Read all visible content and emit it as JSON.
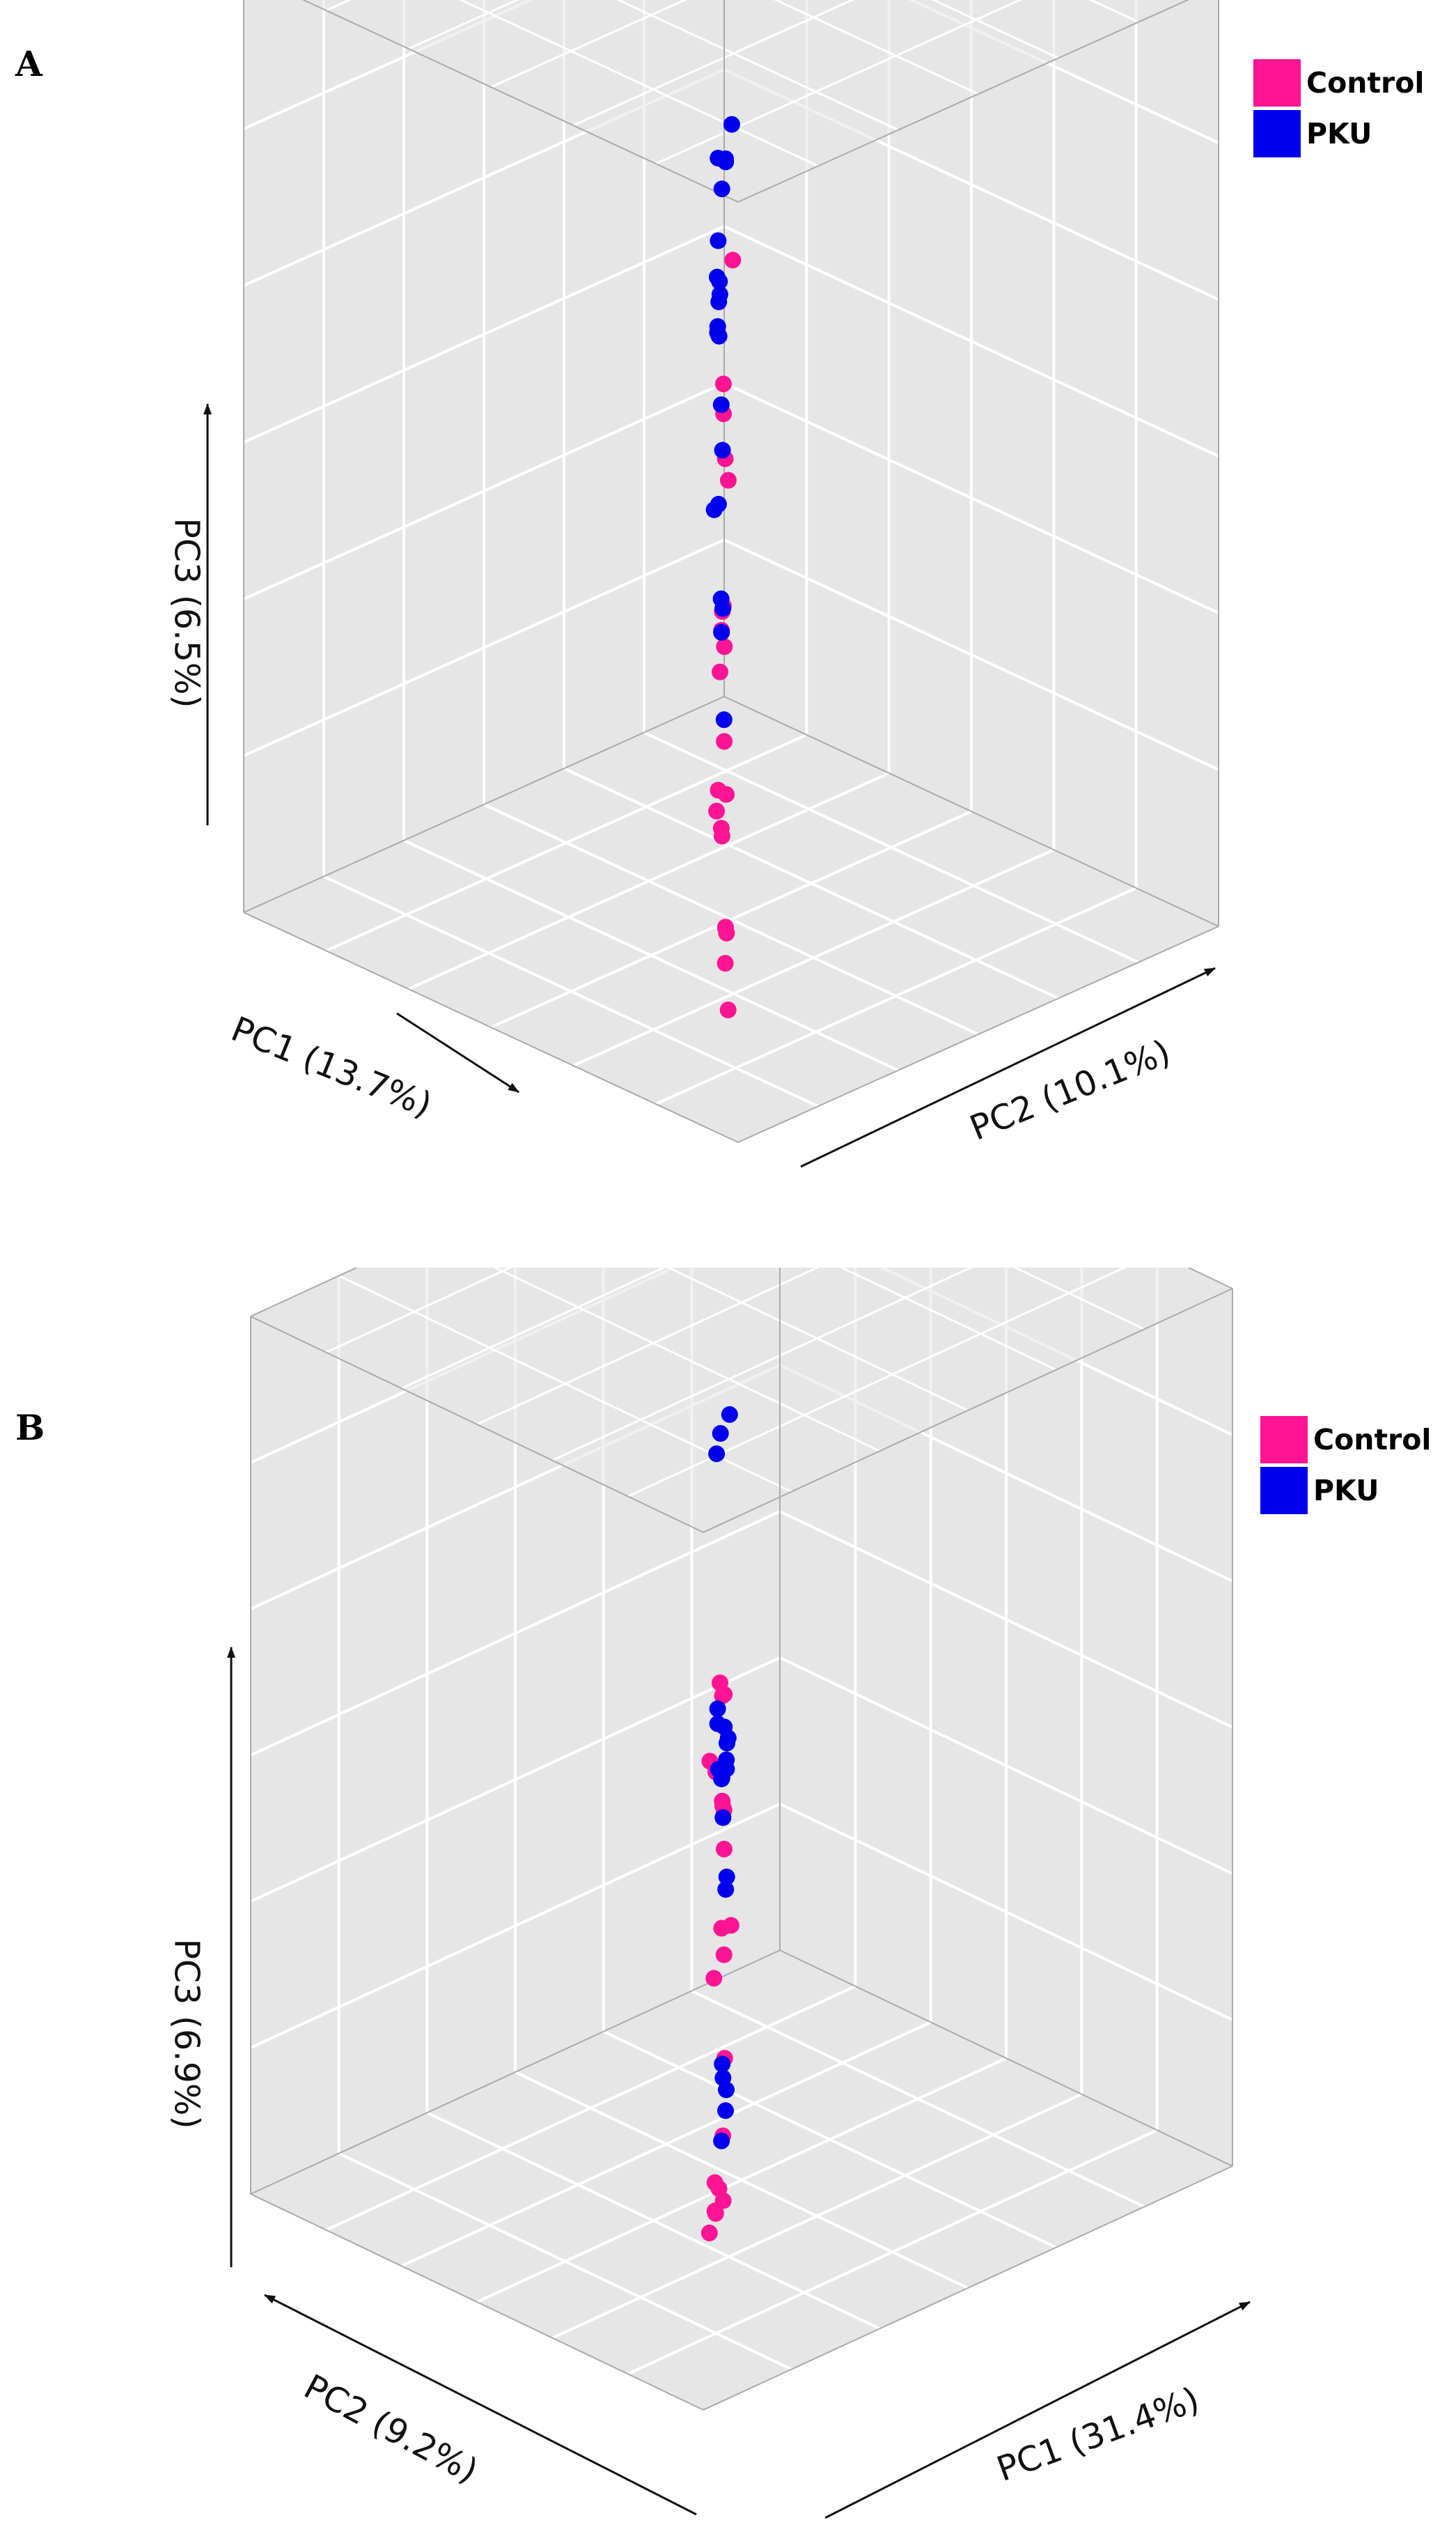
{
  "chart_data": [
    {
      "type": "scatter",
      "panel": "A",
      "title": "",
      "axes": [
        "PC1 (13.7%)",
        "PC2 (10.1%)",
        "PC3 (6.5%)"
      ],
      "legend": [
        {
          "name": "Control",
          "color": "#ff1493"
        },
        {
          "name": "PKU",
          "color": "#0000ee"
        }
      ],
      "series": [
        {
          "name": "Control",
          "color": "#ff1493",
          "points": [
            [
              0.143,
              0.136,
              0.872
            ],
            [
              0.233,
              0.213,
              0.621
            ],
            [
              0.222,
              0.208,
              0.602
            ],
            [
              0.363,
              0.343,
              0.639
            ],
            [
              0.357,
              0.337,
              0.61
            ],
            [
              0.328,
              0.309,
              0.376
            ],
            [
              0.367,
              0.347,
              0.401
            ],
            [
              0.396,
              0.373,
              0.362
            ],
            [
              0.41,
              0.389,
              0.375
            ],
            [
              0.228,
              0.21,
              0.266
            ],
            [
              0.341,
              0.322,
              0.269
            ],
            [
              0.398,
              0.376,
              0.142
            ],
            [
              0.412,
              0.389,
              0.144
            ],
            [
              0.474,
              0.45,
              0.281
            ],
            [
              0.497,
              0.47,
              0.145
            ],
            [
              0.544,
              0.515,
              0.101
            ],
            [
              0.32,
              0.303,
              0.081
            ],
            [
              0.312,
              0.297,
              0.078
            ],
            [
              0.32,
              0.303,
              0.08
            ],
            [
              0.232,
              0.218,
              0.034
            ],
            [
              0.336,
              0.319,
              0.035
            ]
          ]
        },
        {
          "name": "PKU",
          "color": "#0000ee",
          "points": [
            [
              0.178,
              0.17,
              1.0
            ],
            [
              0.305,
              0.288,
              0.902
            ],
            [
              0.314,
              0.297,
              0.901
            ],
            [
              0.405,
              0.383,
              0.827
            ],
            [
              0.508,
              0.481,
              0.812
            ],
            [
              0.5,
              0.473,
              0.728
            ],
            [
              0.475,
              0.451,
              0.682
            ],
            [
              0.473,
              0.448,
              0.697
            ],
            [
              0.493,
              0.467,
              0.666
            ],
            [
              0.502,
              0.477,
              0.625
            ],
            [
              0.498,
              0.47,
              0.638
            ],
            [
              0.516,
              0.488,
              0.623
            ],
            [
              0.537,
              0.509,
              0.672
            ],
            [
              0.394,
              0.373,
              0.554
            ],
            [
              0.419,
              0.396,
              0.591
            ],
            [
              0.472,
              0.445,
              0.461
            ],
            [
              0.372,
              0.351,
              0.396
            ],
            [
              0.431,
              0.409,
              0.343
            ],
            [
              0.46,
              0.438,
              0.365
            ],
            [
              0.356,
              0.337,
              0.285
            ],
            [
              0.616,
              0.584,
              0.388
            ]
          ]
        }
      ]
    },
    {
      "type": "scatter",
      "panel": "B",
      "title": "",
      "axes": [
        "PC2 (9.2%)",
        "PC1 (31.4%)",
        "PC3 (6.9%)"
      ],
      "legend": [
        {
          "name": "Control",
          "color": "#ff1493"
        },
        {
          "name": "PKU",
          "color": "#0000ee"
        }
      ],
      "series": [
        {
          "name": "Control",
          "color": "#ff1493",
          "points": [
            [
              0.099,
              0.097,
              0.688
            ],
            [
              0.191,
              0.187,
              0.628
            ],
            [
              0.166,
              0.162,
              0.406
            ],
            [
              0.26,
              0.254,
              0.694
            ],
            [
              0.291,
              0.285,
              0.663
            ],
            [
              0.289,
              0.283,
              0.544
            ],
            [
              0.302,
              0.295,
              0.532
            ],
            [
              0.318,
              0.311,
              0.519
            ],
            [
              0.323,
              0.316,
              0.648
            ],
            [
              0.327,
              0.319,
              0.47
            ],
            [
              0.288,
              0.281,
              0.4
            ],
            [
              0.318,
              0.311,
              0.354
            ],
            [
              0.094,
              0.092,
              0.153
            ],
            [
              0.186,
              0.181,
              0.163
            ],
            [
              0.179,
              0.175,
              0.134
            ],
            [
              0.189,
              0.185,
              0.126
            ],
            [
              0.246,
              0.24,
              0.125
            ],
            [
              0.308,
              0.301,
              0.079
            ],
            [
              0.334,
              0.326,
              0.228
            ],
            [
              0.304,
              0.297,
              0.155
            ],
            [
              0.425,
              0.416,
              0.332
            ]
          ]
        },
        {
          "name": "PKU",
          "color": "#0000ee",
          "points": [
            [
              0.208,
              0.203,
              0.982
            ],
            [
              0.266,
              0.26,
              0.975
            ],
            [
              0.406,
              0.397,
              0.924
            ],
            [
              0.222,
              0.217,
              0.684
            ],
            [
              0.222,
              0.217,
              0.667
            ],
            [
              0.24,
              0.234,
              0.606
            ],
            [
              0.28,
              0.274,
              0.574
            ],
            [
              0.292,
              0.285,
              0.569
            ],
            [
              0.323,
              0.316,
              0.611
            ],
            [
              0.299,
              0.293,
              0.52
            ],
            [
              0.358,
              0.35,
              0.545
            ],
            [
              0.357,
              0.349,
              0.556
            ],
            [
              0.371,
              0.362,
              0.568
            ],
            [
              0.388,
              0.379,
              0.565
            ],
            [
              0.348,
              0.34,
              0.413
            ],
            [
              0.362,
              0.354,
              0.42
            ],
            [
              0.296,
              0.289,
              0.241
            ],
            [
              0.306,
              0.299,
              0.22
            ],
            [
              0.279,
              0.273,
              0.162
            ],
            [
              0.346,
              0.338,
              0.162
            ],
            [
              0.355,
              0.347,
              0.181
            ]
          ]
        }
      ]
    }
  ],
  "colors": {
    "grid_fill": "#e6e6e6",
    "grid_line": "#ffffff",
    "edge": "#aaaaaa",
    "axis": "#111111"
  }
}
